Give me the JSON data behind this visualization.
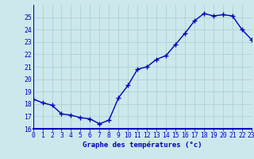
{
  "hours": [
    0,
    1,
    2,
    3,
    4,
    5,
    6,
    7,
    8,
    9,
    10,
    11,
    12,
    13,
    14,
    15,
    16,
    17,
    18,
    19,
    20,
    21,
    22,
    23
  ],
  "temps": [
    18.4,
    18.1,
    17.9,
    17.2,
    17.1,
    16.9,
    16.8,
    16.4,
    16.7,
    18.5,
    19.5,
    20.8,
    21.0,
    21.6,
    21.9,
    22.8,
    23.7,
    24.7,
    25.3,
    25.1,
    25.2,
    25.1,
    24.0,
    23.2
  ],
  "line_color": "#0000bb",
  "marker": "+",
  "marker_size": 4,
  "line_width": 1.0,
  "bg_color": "#cce8ec",
  "grid_color": "#aacccc",
  "axis_color": "#0000bb",
  "tick_color": "#0000bb",
  "xlabel": "Graphe des températures (°c)",
  "xlabel_color": "#0000bb",
  "xlabel_fontsize": 6.5,
  "tick_fontsize": 5.8,
  "ylim": [
    16,
    26
  ],
  "xlim": [
    0,
    23
  ],
  "yticks": [
    16,
    17,
    18,
    19,
    20,
    21,
    22,
    23,
    24,
    25
  ],
  "xticks": [
    0,
    1,
    2,
    3,
    4,
    5,
    6,
    7,
    8,
    9,
    10,
    11,
    12,
    13,
    14,
    15,
    16,
    17,
    18,
    19,
    20,
    21,
    22,
    23
  ]
}
